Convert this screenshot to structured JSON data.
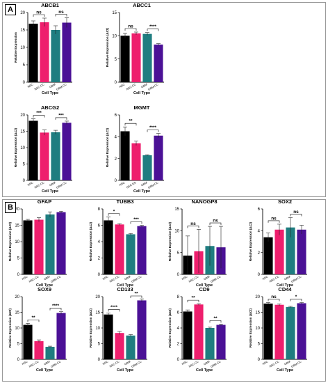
{
  "panels": [
    {
      "label": "A"
    },
    {
      "label": "B"
    }
  ],
  "colors": {
    "black": "#000000",
    "pink": "#ee1f6d",
    "teal": "#1f7d80",
    "purple": "#4b1196"
  },
  "chart_data": [
    {
      "type": "bar",
      "title": "ABCB1",
      "ylabel": "Relative Expression",
      "xlabel": "Cell Type",
      "categories": [
        "NSC",
        "NSC-CC",
        "GBM",
        "GBM-CC"
      ],
      "values": [
        16.8,
        17.2,
        15.0,
        17.1
      ],
      "errors": [
        0.8,
        1.2,
        1.2,
        1.4
      ],
      "ylim": [
        0,
        20
      ],
      "yticks": [
        0,
        5,
        10,
        15,
        20
      ],
      "significance": [
        {
          "from": 0,
          "to": 1,
          "label": "ns"
        },
        {
          "from": 2,
          "to": 3,
          "label": "ns"
        }
      ]
    },
    {
      "type": "bar",
      "title": "ABCC1",
      "ylabel": "Relative Expression (ΔCt)",
      "xlabel": "Cell Type",
      "categories": [
        "NSC",
        "NSC-CC",
        "GBM",
        "GBM-CC"
      ],
      "values": [
        10.0,
        10.5,
        10.4,
        8.1
      ],
      "errors": [
        0.5,
        0.3,
        0.3,
        0.2
      ],
      "ylim": [
        0,
        15
      ],
      "yticks": [
        0,
        5,
        10,
        15
      ],
      "significance": [
        {
          "from": 0,
          "to": 1,
          "label": "ns"
        },
        {
          "from": 2,
          "to": 3,
          "label": "****"
        }
      ]
    },
    {
      "type": "bar",
      "title": "ABCG2",
      "ylabel": "Relative Expression (ΔCt)",
      "xlabel": "Cell Type",
      "categories": [
        "NSC",
        "NSC-CC",
        "GBM",
        "GBM-CC"
      ],
      "values": [
        18.2,
        14.6,
        14.7,
        17.6
      ],
      "errors": [
        0.6,
        0.8,
        0.6,
        0.5
      ],
      "ylim": [
        0,
        20
      ],
      "yticks": [
        0,
        5,
        10,
        15,
        20
      ],
      "significance": [
        {
          "from": 0,
          "to": 1,
          "label": "***"
        },
        {
          "from": 2,
          "to": 3,
          "label": "***"
        }
      ]
    },
    {
      "type": "bar",
      "title": "MGMT",
      "ylabel": "Relative Expression (ΔCt)",
      "xlabel": "Cell Type",
      "categories": [
        "NSC",
        "NSC-ES",
        "GBM",
        "GBM-CC"
      ],
      "values": [
        4.5,
        3.4,
        2.3,
        4.1
      ],
      "errors": [
        0.4,
        0.2,
        0.05,
        0.2
      ],
      "ylim": [
        0,
        6
      ],
      "yticks": [
        0,
        2,
        4,
        6
      ],
      "significance": [
        {
          "from": 0,
          "to": 1,
          "label": "**"
        },
        {
          "from": 2,
          "to": 3,
          "label": "****"
        }
      ]
    },
    {
      "type": "bar",
      "title": "GFAP",
      "ylabel": "Relative Expression (ΔCt)",
      "xlabel": "Cell Type",
      "categories": [
        "NSC",
        "NSC-CC",
        "GBM",
        "GBM-CC"
      ],
      "values": [
        16.5,
        16.7,
        18.3,
        19.0
      ],
      "errors": [
        0.3,
        0.6,
        0.8,
        0.3
      ],
      "ylim": [
        0,
        20
      ],
      "yticks": [
        0,
        5,
        10,
        15,
        20
      ],
      "significance": []
    },
    {
      "type": "bar",
      "title": "TUBB3",
      "ylabel": "Relative Expression (ΔCt)",
      "xlabel": "Cell Type",
      "categories": [
        "NSC",
        "NSC-CC",
        "GBM",
        "GBM-CC"
      ],
      "values": [
        6.6,
        6.1,
        4.9,
        5.9
      ],
      "errors": [
        0.4,
        0.1,
        0.1,
        0.1
      ],
      "ylim": [
        0,
        8
      ],
      "yticks": [
        0,
        2,
        4,
        6,
        8
      ],
      "significance": [
        {
          "from": 0,
          "to": 1,
          "label": "*"
        },
        {
          "from": 2,
          "to": 3,
          "label": "***"
        }
      ]
    },
    {
      "type": "bar",
      "title": "NANOGP8",
      "ylabel": "Relative Expression (ΔCt)",
      "xlabel": "Cell Type",
      "categories": [
        "NSC",
        "NSC-CC",
        "GBM",
        "GBM-CC"
      ],
      "values": [
        4.3,
        5.3,
        6.5,
        6.2
      ],
      "errors": [
        4.5,
        5.0,
        4.5,
        4.8
      ],
      "ylim": [
        0,
        15
      ],
      "yticks": [
        0,
        5,
        10,
        15
      ],
      "significance": [
        {
          "from": 0,
          "to": 1,
          "label": "ns"
        },
        {
          "from": 2,
          "to": 3,
          "label": "ns"
        }
      ]
    },
    {
      "type": "bar",
      "title": "SOX2",
      "ylabel": "Relative Expression (ΔCt)",
      "xlabel": "Cell Type",
      "categories": [
        "NSC",
        "NSC-CC",
        "GBM",
        "GBM-CC"
      ],
      "values": [
        3.4,
        4.1,
        4.3,
        4.1
      ],
      "errors": [
        0.4,
        0.5,
        0.9,
        0.4
      ],
      "ylim": [
        0,
        6
      ],
      "yticks": [
        0,
        2,
        4,
        6
      ],
      "significance": [
        {
          "from": 0,
          "to": 1,
          "label": "ns"
        },
        {
          "from": 2,
          "to": 3,
          "label": "ns"
        }
      ]
    },
    {
      "type": "bar",
      "title": "SOX9",
      "ylabel": "Relative Expression (ΔCt)",
      "xlabel": "Cell Type",
      "categories": [
        "NSC",
        "NSC-CC",
        "GBM",
        "GBM-CC"
      ],
      "values": [
        11.0,
        5.8,
        4.0,
        14.8
      ],
      "errors": [
        0.5,
        0.4,
        0.2,
        0.4
      ],
      "ylim": [
        0,
        20
      ],
      "yticks": [
        0,
        5,
        10,
        15,
        20
      ],
      "significance": [
        {
          "from": 0,
          "to": 1,
          "label": "**"
        },
        {
          "from": 2,
          "to": 3,
          "label": "****"
        }
      ]
    },
    {
      "type": "bar",
      "title": "CD133",
      "ylabel": "Relative Expression (ΔCt)",
      "xlabel": "Cell Type",
      "categories": [
        "NSC",
        "NSC-CC",
        "GBM",
        "GBM-CC"
      ],
      "values": [
        14.3,
        8.4,
        7.6,
        18.8
      ],
      "errors": [
        0.5,
        0.5,
        0.3,
        0.5
      ],
      "ylim": [
        0,
        20
      ],
      "yticks": [
        0,
        5,
        10,
        15,
        20
      ],
      "significance": [
        {
          "from": 0,
          "to": 1,
          "label": "****"
        },
        {
          "from": 2,
          "to": 3,
          "label": "**"
        }
      ]
    },
    {
      "type": "bar",
      "title": "CD9",
      "ylabel": "Relative Expression (ΔCt)",
      "xlabel": "Cell Type",
      "categories": [
        "NSC",
        "NSC-CC",
        "GBM",
        "GBM-CC"
      ],
      "values": [
        6.1,
        7.0,
        4.0,
        4.4
      ],
      "errors": [
        0.2,
        0.1,
        0.1,
        0.1
      ],
      "ylim": [
        0,
        8
      ],
      "yticks": [
        0,
        2,
        4,
        6,
        8
      ],
      "significance": [
        {
          "from": 0,
          "to": 1,
          "label": "**"
        },
        {
          "from": 2,
          "to": 3,
          "label": "**"
        }
      ]
    },
    {
      "type": "bar",
      "title": "CD44",
      "ylabel": "Relative Expression (ΔCt)",
      "xlabel": "Cell Type",
      "categories": [
        "NSC",
        "NSC-CC",
        "GBM",
        "GBM-CC"
      ],
      "values": [
        17.8,
        17.4,
        16.7,
        17.9
      ],
      "errors": [
        0.3,
        0.3,
        0.2,
        0.2
      ],
      "ylim": [
        0,
        20
      ],
      "yticks": [
        0,
        5,
        10,
        15,
        20
      ],
      "significance": [
        {
          "from": 0,
          "to": 1,
          "label": "ns"
        },
        {
          "from": 2,
          "to": 3,
          "label": "*"
        }
      ]
    }
  ]
}
